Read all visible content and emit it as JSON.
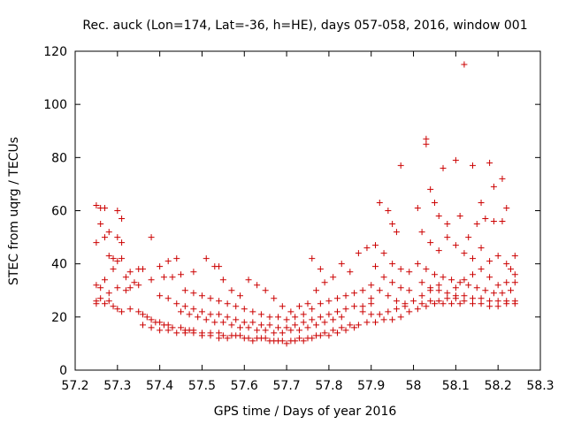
{
  "chart_data": {
    "type": "scatter",
    "title": "Rec. auck (Lon=174, Lat=-36, h=HE), days 057-058, 2016, window 001",
    "xlabel": "GPS time / Days of year 2016",
    "ylabel": "STEC from uqrg / TECUs",
    "xlim": [
      57.2,
      58.3
    ],
    "ylim": [
      0,
      120
    ],
    "xticks": [
      "57.2",
      "57.3",
      "57.4",
      "57.5",
      "57.6",
      "57.7",
      "57.8",
      "57.9",
      "58",
      "58.1",
      "58.2",
      "58.3"
    ],
    "yticks": [
      "0",
      "20",
      "40",
      "60",
      "80",
      "100",
      "120"
    ],
    "grid": false,
    "legend": "none",
    "marker": "plus",
    "color": "#cc0000",
    "series": [
      {
        "points": [
          [
            57.25,
            62
          ],
          [
            57.26,
            61
          ],
          [
            57.27,
            61
          ],
          [
            57.3,
            60
          ],
          [
            57.31,
            57
          ],
          [
            57.26,
            55
          ],
          [
            57.28,
            52
          ],
          [
            57.25,
            48
          ],
          [
            57.27,
            50
          ],
          [
            57.3,
            50
          ],
          [
            57.31,
            48
          ],
          [
            57.38,
            50
          ],
          [
            57.28,
            43
          ],
          [
            57.29,
            42
          ],
          [
            57.3,
            41
          ],
          [
            57.31,
            42
          ],
          [
            57.29,
            38
          ],
          [
            57.33,
            37
          ],
          [
            57.35,
            38
          ],
          [
            57.36,
            38
          ],
          [
            57.42,
            41
          ],
          [
            57.4,
            39
          ],
          [
            57.44,
            42
          ],
          [
            57.45,
            36
          ],
          [
            57.51,
            42
          ],
          [
            57.54,
            39
          ],
          [
            57.48,
            37
          ],
          [
            57.43,
            35
          ],
          [
            57.41,
            35
          ],
          [
            57.38,
            34
          ],
          [
            57.35,
            32
          ],
          [
            57.33,
            31
          ],
          [
            57.32,
            30
          ],
          [
            57.27,
            34
          ],
          [
            57.25,
            32
          ],
          [
            57.26,
            31
          ],
          [
            57.28,
            29
          ],
          [
            57.3,
            31
          ],
          [
            57.32,
            35
          ],
          [
            57.34,
            33
          ],
          [
            57.26,
            27
          ],
          [
            57.25,
            26
          ],
          [
            57.25,
            25
          ],
          [
            57.27,
            25
          ],
          [
            57.28,
            26
          ],
          [
            57.29,
            24
          ],
          [
            57.3,
            23
          ],
          [
            57.31,
            22
          ],
          [
            57.33,
            23
          ],
          [
            57.35,
            22
          ],
          [
            57.36,
            21
          ],
          [
            57.37,
            20
          ],
          [
            57.38,
            19
          ],
          [
            57.39,
            18
          ],
          [
            57.4,
            18
          ],
          [
            57.41,
            17
          ],
          [
            57.42,
            17
          ],
          [
            57.43,
            16
          ],
          [
            57.45,
            16
          ],
          [
            57.46,
            15
          ],
          [
            57.47,
            15
          ],
          [
            57.48,
            15
          ],
          [
            57.5,
            14
          ],
          [
            57.52,
            14
          ],
          [
            57.54,
            14
          ],
          [
            57.55,
            13
          ],
          [
            57.57,
            13
          ],
          [
            57.59,
            13
          ],
          [
            57.61,
            12
          ],
          [
            57.63,
            12
          ],
          [
            57.65,
            12
          ],
          [
            57.67,
            11
          ],
          [
            57.69,
            11
          ],
          [
            57.71,
            11
          ],
          [
            57.73,
            12
          ],
          [
            57.75,
            12
          ],
          [
            57.77,
            13
          ],
          [
            57.79,
            14
          ],
          [
            57.81,
            15
          ],
          [
            57.83,
            16
          ],
          [
            57.85,
            17
          ],
          [
            57.87,
            17
          ],
          [
            57.89,
            18
          ],
          [
            57.91,
            18
          ],
          [
            57.93,
            19
          ],
          [
            57.95,
            19
          ],
          [
            57.97,
            20
          ],
          [
            57.99,
            22
          ],
          [
            58.01,
            23
          ],
          [
            58.03,
            24
          ],
          [
            58.05,
            25
          ],
          [
            58.07,
            25
          ],
          [
            58.09,
            25
          ],
          [
            58.11,
            25
          ],
          [
            57.36,
            17
          ],
          [
            57.38,
            16
          ],
          [
            57.4,
            15
          ],
          [
            57.42,
            15
          ],
          [
            57.44,
            14
          ],
          [
            57.46,
            14
          ],
          [
            57.48,
            14
          ],
          [
            57.5,
            13
          ],
          [
            57.52,
            13
          ],
          [
            57.54,
            12
          ],
          [
            57.56,
            12
          ],
          [
            57.58,
            13
          ],
          [
            57.6,
            12
          ],
          [
            57.62,
            11
          ],
          [
            57.64,
            12
          ],
          [
            57.66,
            11
          ],
          [
            57.68,
            11
          ],
          [
            57.7,
            10
          ],
          [
            57.72,
            11
          ],
          [
            57.74,
            11
          ],
          [
            57.76,
            12
          ],
          [
            57.78,
            13
          ],
          [
            57.8,
            13
          ],
          [
            57.82,
            14
          ],
          [
            57.84,
            15
          ],
          [
            57.86,
            16
          ],
          [
            57.45,
            22
          ],
          [
            57.47,
            21
          ],
          [
            57.49,
            20
          ],
          [
            57.51,
            19
          ],
          [
            57.53,
            18
          ],
          [
            57.55,
            18
          ],
          [
            57.57,
            17
          ],
          [
            57.59,
            16
          ],
          [
            57.61,
            16
          ],
          [
            57.63,
            15
          ],
          [
            57.65,
            15
          ],
          [
            57.67,
            14
          ],
          [
            57.69,
            14
          ],
          [
            57.71,
            15
          ],
          [
            57.73,
            15
          ],
          [
            57.75,
            16
          ],
          [
            57.77,
            17
          ],
          [
            57.79,
            18
          ],
          [
            57.81,
            19
          ],
          [
            57.83,
            20
          ],
          [
            57.4,
            28
          ],
          [
            57.42,
            27
          ],
          [
            57.44,
            25
          ],
          [
            57.46,
            24
          ],
          [
            57.48,
            23
          ],
          [
            57.5,
            22
          ],
          [
            57.52,
            21
          ],
          [
            57.54,
            21
          ],
          [
            57.56,
            20
          ],
          [
            57.58,
            19
          ],
          [
            57.6,
            18
          ],
          [
            57.62,
            18
          ],
          [
            57.64,
            17
          ],
          [
            57.66,
            17
          ],
          [
            57.68,
            16
          ],
          [
            57.7,
            16
          ],
          [
            57.72,
            17
          ],
          [
            57.74,
            18
          ],
          [
            57.76,
            19
          ],
          [
            57.78,
            20
          ],
          [
            57.8,
            21
          ],
          [
            57.82,
            22
          ],
          [
            57.84,
            23
          ],
          [
            57.86,
            24
          ],
          [
            57.88,
            24
          ],
          [
            57.9,
            25
          ],
          [
            57.46,
            30
          ],
          [
            57.48,
            29
          ],
          [
            57.5,
            28
          ],
          [
            57.52,
            27
          ],
          [
            57.54,
            26
          ],
          [
            57.56,
            25
          ],
          [
            57.58,
            24
          ],
          [
            57.6,
            23
          ],
          [
            57.62,
            22
          ],
          [
            57.64,
            21
          ],
          [
            57.66,
            20
          ],
          [
            57.68,
            20
          ],
          [
            57.7,
            19
          ],
          [
            57.72,
            20
          ],
          [
            57.74,
            21
          ],
          [
            57.76,
            23
          ],
          [
            57.78,
            25
          ],
          [
            57.8,
            26
          ],
          [
            57.82,
            27
          ],
          [
            57.84,
            28
          ],
          [
            57.86,
            29
          ],
          [
            57.88,
            30
          ],
          [
            57.53,
            39
          ],
          [
            57.55,
            34
          ],
          [
            57.57,
            30
          ],
          [
            57.59,
            28
          ],
          [
            57.61,
            34
          ],
          [
            57.63,
            32
          ],
          [
            57.65,
            30
          ],
          [
            57.67,
            27
          ],
          [
            57.69,
            24
          ],
          [
            57.71,
            22
          ],
          [
            57.73,
            24
          ],
          [
            57.75,
            25
          ],
          [
            57.77,
            30
          ],
          [
            57.79,
            33
          ],
          [
            57.81,
            35
          ],
          [
            57.83,
            40
          ],
          [
            57.76,
            42
          ],
          [
            57.78,
            38
          ],
          [
            57.85,
            37
          ],
          [
            57.87,
            44
          ],
          [
            57.89,
            46
          ],
          [
            57.91,
            47
          ],
          [
            57.92,
            63
          ],
          [
            57.94,
            60
          ],
          [
            57.95,
            55
          ],
          [
            57.96,
            52
          ],
          [
            57.97,
            77
          ],
          [
            57.93,
            44
          ],
          [
            57.95,
            40
          ],
          [
            57.97,
            38
          ],
          [
            57.99,
            37
          ],
          [
            57.91,
            39
          ],
          [
            57.93,
            35
          ],
          [
            57.95,
            33
          ],
          [
            57.97,
            31
          ],
          [
            57.99,
            30
          ],
          [
            57.9,
            32
          ],
          [
            57.92,
            30
          ],
          [
            57.94,
            28
          ],
          [
            57.96,
            26
          ],
          [
            57.98,
            25
          ],
          [
            57.9,
            27
          ],
          [
            57.88,
            22
          ],
          [
            57.9,
            21
          ],
          [
            57.92,
            21
          ],
          [
            57.94,
            22
          ],
          [
            57.96,
            23
          ],
          [
            57.98,
            24
          ],
          [
            58.0,
            26
          ],
          [
            58.02,
            28
          ],
          [
            58.04,
            30
          ],
          [
            58.06,
            32
          ],
          [
            58.01,
            61
          ],
          [
            58.03,
            87
          ],
          [
            58.03,
            85
          ],
          [
            58.04,
            68
          ],
          [
            58.05,
            63
          ],
          [
            58.07,
            76
          ],
          [
            58.06,
            58
          ],
          [
            58.08,
            55
          ],
          [
            58.1,
            79
          ],
          [
            58.12,
            115
          ],
          [
            58.11,
            58
          ],
          [
            58.14,
            77
          ],
          [
            58.16,
            63
          ],
          [
            58.18,
            78
          ],
          [
            58.19,
            69
          ],
          [
            58.21,
            72
          ],
          [
            58.22,
            61
          ],
          [
            58.13,
            50
          ],
          [
            58.15,
            55
          ],
          [
            58.17,
            57
          ],
          [
            58.19,
            56
          ],
          [
            58.21,
            56
          ],
          [
            58.02,
            52
          ],
          [
            58.04,
            48
          ],
          [
            58.06,
            45
          ],
          [
            58.08,
            50
          ],
          [
            58.1,
            47
          ],
          [
            58.12,
            44
          ],
          [
            58.14,
            42
          ],
          [
            58.16,
            46
          ],
          [
            58.18,
            41
          ],
          [
            58.2,
            43
          ],
          [
            58.22,
            40
          ],
          [
            58.24,
            43
          ],
          [
            58.01,
            40
          ],
          [
            58.03,
            38
          ],
          [
            58.05,
            36
          ],
          [
            58.07,
            35
          ],
          [
            58.09,
            34
          ],
          [
            58.11,
            33
          ],
          [
            58.13,
            32
          ],
          [
            58.15,
            31
          ],
          [
            58.17,
            30
          ],
          [
            58.19,
            29
          ],
          [
            58.21,
            29
          ],
          [
            58.23,
            30
          ],
          [
            58.02,
            33
          ],
          [
            58.04,
            31
          ],
          [
            58.06,
            30
          ],
          [
            58.08,
            29
          ],
          [
            58.1,
            28
          ],
          [
            58.12,
            28
          ],
          [
            58.14,
            27
          ],
          [
            58.16,
            27
          ],
          [
            58.18,
            26
          ],
          [
            58.2,
            26
          ],
          [
            58.22,
            26
          ],
          [
            58.24,
            26
          ],
          [
            58.02,
            25
          ],
          [
            58.04,
            26
          ],
          [
            58.06,
            26
          ],
          [
            58.08,
            27
          ],
          [
            58.1,
            27
          ],
          [
            58.12,
            26
          ],
          [
            58.14,
            25
          ],
          [
            58.16,
            25
          ],
          [
            58.18,
            24
          ],
          [
            58.2,
            24
          ],
          [
            58.22,
            25
          ],
          [
            58.24,
            25
          ],
          [
            58.24,
            36
          ],
          [
            58.24,
            33
          ],
          [
            58.23,
            38
          ],
          [
            58.22,
            33
          ],
          [
            58.2,
            32
          ],
          [
            58.18,
            35
          ],
          [
            58.16,
            38
          ],
          [
            58.14,
            36
          ],
          [
            58.12,
            34
          ],
          [
            58.1,
            31
          ]
        ]
      }
    ]
  }
}
